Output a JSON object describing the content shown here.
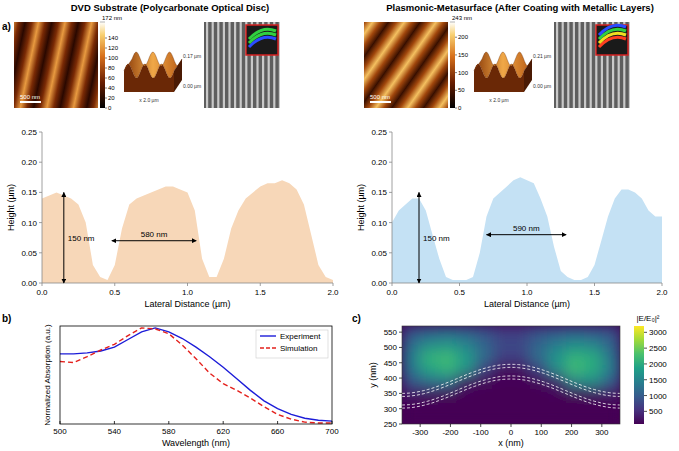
{
  "chart_data": [
    {
      "type": "area",
      "panel": "a)",
      "title": "DVD Substrate (Polycarbonate Optical Disc)",
      "x_label": "Lateral Distance (µm)",
      "y_label": "Height (µm)",
      "color": "#f7d7b8",
      "x": [
        0,
        0.05,
        0.1,
        0.15,
        0.2,
        0.25,
        0.3,
        0.35,
        0.4,
        0.45,
        0.5,
        0.55,
        0.6,
        0.65,
        0.7,
        0.75,
        0.8,
        0.85,
        0.9,
        0.95,
        1.0,
        1.05,
        1.1,
        1.15,
        1.2,
        1.25,
        1.3,
        1.35,
        1.4,
        1.45,
        1.5,
        1.55,
        1.6,
        1.65,
        1.7,
        1.75,
        1.8,
        1.85,
        1.9,
        1.95,
        2.0
      ],
      "values": [
        0.14,
        0.145,
        0.15,
        0.145,
        0.14,
        0.13,
        0.1,
        0.03,
        0.01,
        0.005,
        0.03,
        0.09,
        0.13,
        0.14,
        0.145,
        0.15,
        0.155,
        0.16,
        0.16,
        0.155,
        0.15,
        0.12,
        0.04,
        0.01,
        0.01,
        0.04,
        0.09,
        0.12,
        0.14,
        0.15,
        0.16,
        0.165,
        0.165,
        0.17,
        0.165,
        0.155,
        0.13,
        0.08,
        0.03,
        0.01,
        0.005
      ],
      "xlim": [
        0,
        2
      ],
      "xticks": [
        {
          "value": 0,
          "label": "0.0"
        },
        0.5,
        {
          "value": 1,
          "label": "1.0"
        },
        1.5,
        {
          "value": 2,
          "label": "2.0"
        }
      ],
      "ylim": [
        0,
        0.25
      ],
      "yticks": [
        {
          "value": 0,
          "label": "0.00"
        },
        0.05,
        {
          "value": 0.1,
          "label": "0.10"
        },
        0.15,
        {
          "value": 0.2,
          "label": "0.20"
        },
        0.25
      ],
      "height_marker": {
        "label": "150 nm",
        "x": 0.15,
        "from": 0,
        "to": 0.15
      },
      "period_marker": {
        "label": "580 nm",
        "y": 0.07,
        "from": 0.48,
        "to": 1.06
      },
      "afm_colorbar": {
        "range": [
          0,
          172
        ],
        "ticks": [
          0,
          20,
          40,
          60,
          80,
          100,
          120,
          140
        ],
        "max_label": "172 nm"
      },
      "scale_bar": "500 nm",
      "surface_labels": [
        "0.17 µm",
        "0.00 µm",
        "x 2.0 µm"
      ]
    },
    {
      "type": "area",
      "title": "Plasmonic-Metasurface (After Coating with Metallic Layers)",
      "x_label": "Lateral Distance (µm)",
      "y_label": "Height (µm)",
      "color": "#c4e1f4",
      "x": [
        0,
        0.05,
        0.1,
        0.15,
        0.2,
        0.25,
        0.3,
        0.35,
        0.4,
        0.45,
        0.5,
        0.55,
        0.6,
        0.65,
        0.7,
        0.75,
        0.8,
        0.85,
        0.9,
        0.95,
        1.0,
        1.05,
        1.1,
        1.15,
        1.2,
        1.25,
        1.3,
        1.35,
        1.4,
        1.45,
        1.5,
        1.55,
        1.6,
        1.65,
        1.7,
        1.75,
        1.8,
        1.85,
        1.9,
        1.95,
        2.0
      ],
      "values": [
        0.1,
        0.12,
        0.13,
        0.14,
        0.14,
        0.12,
        0.08,
        0.04,
        0.01,
        0.005,
        0.005,
        0.005,
        0.01,
        0.05,
        0.11,
        0.14,
        0.15,
        0.16,
        0.17,
        0.175,
        0.17,
        0.165,
        0.14,
        0.11,
        0.06,
        0.02,
        0.01,
        0.005,
        0.005,
        0.01,
        0.03,
        0.07,
        0.11,
        0.14,
        0.155,
        0.155,
        0.15,
        0.14,
        0.12,
        0.11,
        0.11
      ],
      "xlim": [
        0,
        2
      ],
      "xticks": [
        {
          "value": 0,
          "label": "0.0"
        },
        0.5,
        {
          "value": 1,
          "label": "1.0"
        },
        1.5,
        {
          "value": 2,
          "label": "2.0"
        }
      ],
      "ylim": [
        0,
        0.25
      ],
      "yticks": [
        {
          "value": 0,
          "label": "0.00"
        },
        0.05,
        {
          "value": 0.1,
          "label": "0.10"
        },
        0.15,
        {
          "value": 0.2,
          "label": "0.20"
        },
        0.25
      ],
      "height_marker": {
        "label": "150 nm",
        "x": 0.2,
        "from": 0,
        "to": 0.15
      },
      "period_marker": {
        "label": "590 nm",
        "y": 0.08,
        "from": 0.7,
        "to": 1.29
      },
      "afm_colorbar": {
        "range": [
          0,
          243
        ],
        "ticks": [
          0,
          50,
          100,
          150,
          200
        ],
        "max_label": "243 nm"
      },
      "scale_bar": "500 nm",
      "surface_labels": [
        "0.21 µm",
        "0.00 µm",
        "x 2.0 µm"
      ]
    },
    {
      "type": "line",
      "panel": "b)",
      "x_label": "Wavelength (nm)",
      "y_label": "Normalized Absorption (a.u.)",
      "x": [
        500,
        510,
        520,
        530,
        540,
        550,
        560,
        570,
        580,
        590,
        600,
        610,
        620,
        630,
        640,
        650,
        660,
        670,
        680,
        690,
        700
      ],
      "series": [
        {
          "name": "Experiment",
          "color": "#1c1cd8",
          "line_style": "solid",
          "values": [
            0.73,
            0.73,
            0.74,
            0.76,
            0.8,
            0.88,
            0.96,
            1.0,
            0.96,
            0.89,
            0.8,
            0.7,
            0.59,
            0.47,
            0.35,
            0.24,
            0.16,
            0.1,
            0.06,
            0.04,
            0.03
          ]
        },
        {
          "name": "Simulation",
          "color": "#e4201c",
          "line_style": "dashed",
          "values": [
            0.65,
            0.64,
            0.7,
            0.77,
            0.83,
            0.92,
            1.0,
            0.99,
            0.94,
            0.82,
            0.68,
            0.53,
            0.42,
            0.35,
            0.27,
            0.18,
            0.1,
            0.05,
            0.02,
            0.01,
            0.01
          ]
        }
      ],
      "xlim": [
        500,
        700
      ],
      "xticks": [
        500,
        540,
        580,
        620,
        660,
        700
      ],
      "ylim": [
        0,
        1.02
      ],
      "tick_labels": "x",
      "legend": "upper right"
    },
    {
      "type": "heatmap",
      "panel": "c)",
      "x_label": "x (nm)",
      "y_label": "y (nm)",
      "x": [
        -330,
        -270,
        -210,
        -150,
        -90,
        -30,
        30,
        90,
        150,
        210,
        270,
        330
      ],
      "y": [
        270,
        310,
        350,
        390,
        430,
        470,
        510,
        550
      ],
      "cells": [
        [
          80,
          80,
          80,
          80,
          80,
          80,
          80,
          80,
          80,
          80,
          80,
          80
        ],
        [
          100,
          100,
          100,
          100,
          100,
          100,
          100,
          100,
          100,
          100,
          100,
          100
        ],
        [
          300,
          250,
          150,
          120,
          110,
          100,
          100,
          110,
          120,
          150,
          250,
          300
        ],
        [
          900,
          1200,
          1300,
          300,
          150,
          120,
          120,
          150,
          400,
          1500,
          1600,
          1000
        ],
        [
          1300,
          1900,
          2100,
          1700,
          700,
          200,
          200,
          700,
          1600,
          2200,
          2000,
          1400
        ],
        [
          1400,
          2100,
          2200,
          1800,
          1200,
          700,
          700,
          1200,
          1700,
          2100,
          2000,
          1300
        ],
        [
          1200,
          1600,
          1700,
          1500,
          1100,
          800,
          800,
          1100,
          1400,
          1600,
          1500,
          1100
        ],
        [
          900,
          1100,
          1200,
          1100,
          900,
          700,
          700,
          900,
          1000,
          1100,
          1000,
          900
        ]
      ],
      "xlim": [
        -360,
        360
      ],
      "xticks": [
        -300,
        -200,
        -100,
        0,
        100,
        200,
        300
      ],
      "ylim": [
        250,
        570
      ],
      "yticks": [
        250,
        300,
        350,
        400,
        450,
        500,
        550
      ],
      "colorbar": {
        "label": "|E/E₀|²",
        "range": [
          100,
          3200
        ],
        "ticks": [
          500,
          1000,
          1500,
          2000,
          2500,
          3000
        ]
      }
    }
  ]
}
